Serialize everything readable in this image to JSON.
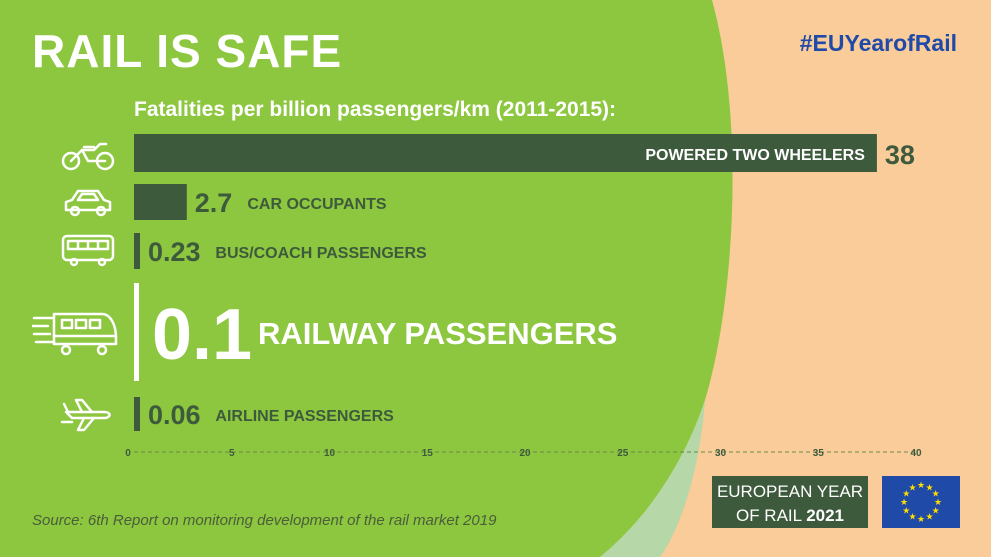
{
  "header": {
    "title": "RAIL IS SAFE",
    "hashtag": "#EUYearofRail",
    "subtitle": "Fatalities per billion passengers/km (2011-2015):"
  },
  "footer": {
    "source": "Source: 6th Report on monitoring development of the rail market 2019",
    "badge_line1": "EUROPEAN YEAR",
    "badge_line2_prefix": "OF RAIL ",
    "badge_year": "2021"
  },
  "colors": {
    "green_background": "#8dc63f",
    "peach_background": "#f9cc9a",
    "bar_dark_green": "#3e5a3c",
    "eu_blue": "#1f4aa8",
    "eu_star_yellow": "#ffdd00"
  },
  "chart_data": {
    "type": "bar",
    "orientation": "horizontal",
    "categories": [
      "POWERED TWO WHEELERS",
      "CAR OCCUPANTS",
      "BUS/COACH PASSENGERS",
      "RAILWAY PASSENGERS",
      "AIRLINE PASSENGERS"
    ],
    "values": [
      38,
      2.7,
      0.23,
      0.1,
      0.06
    ],
    "value_labels": [
      "38",
      "2.7",
      "0.23",
      "0.1",
      "0.06"
    ],
    "icons": [
      "motorcycle-icon",
      "car-icon",
      "bus-icon",
      "train-icon",
      "airplane-icon"
    ],
    "xlim": [
      0,
      40
    ],
    "x_ticks": [
      "0",
      "5",
      "10",
      "15",
      "20",
      "25",
      "30",
      "35",
      "40"
    ],
    "highlighted_category": "RAILWAY PASSENGERS"
  }
}
